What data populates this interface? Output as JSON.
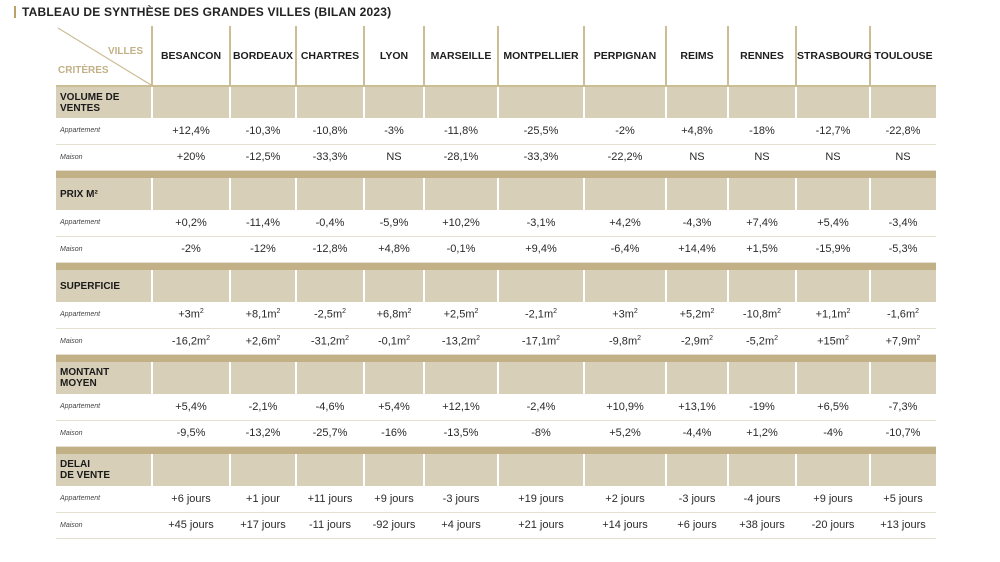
{
  "title": "TABLEAU DE SYNTHÈSE DES GRANDES VILLES (BILAN 2023)",
  "header": {
    "villes_label": "VILLES",
    "criteres_label": "CRITÈRES"
  },
  "cities": [
    "BESANCON",
    "BORDEAUX",
    "CHARTRES",
    "LYON",
    "MARSEILLE",
    "MONTPELLIER",
    "PERPIGNAN",
    "REIMS",
    "RENNES",
    "STRASBOURG",
    "TOULOUSE"
  ],
  "colors": {
    "accent": "#c2b186",
    "section_bg": "#d7cfb8",
    "grid": "#cbbd94"
  },
  "sections": [
    {
      "label": "VOLUME DE\nVENTES",
      "rows": [
        {
          "label": "Appartement",
          "values": [
            "+12,4%",
            "-10,3%",
            "-10,8%",
            "-3%",
            "-11,8%",
            "-25,5%",
            "-2%",
            "+4,8%",
            "-18%",
            "-12,7%",
            "-22,8%"
          ]
        },
        {
          "label": "Maison",
          "values": [
            "+20%",
            "-12,5%",
            "-33,3%",
            "NS",
            "-28,1%",
            "-33,3%",
            "-22,2%",
            "NS",
            "NS",
            "NS",
            "NS"
          ]
        }
      ]
    },
    {
      "label": "PRIX M²",
      "rows": [
        {
          "label": "Appartement",
          "values": [
            "+0,2%",
            "-11,4%",
            "-0,4%",
            "-5,9%",
            "+10,2%",
            "-3,1%",
            "+4,2%",
            "-4,3%",
            "+7,4%",
            "+5,4%",
            "-3,4%"
          ]
        },
        {
          "label": "Maison",
          "values": [
            "-2%",
            "-12%",
            "-12,8%",
            "+4,8%",
            "-0,1%",
            "+9,4%",
            "-6,4%",
            "+14,4%",
            "+1,5%",
            "-15,9%",
            "-5,3%"
          ]
        }
      ]
    },
    {
      "label": "SUPERFICIE",
      "rows": [
        {
          "label": "Appartement",
          "unit": "m",
          "sup": "2",
          "values": [
            "+3",
            "+8,1",
            "-2,5",
            "+6,8",
            "+2,5",
            "-2,1",
            "+3",
            "+5,2",
            "-10,8",
            "+1,1",
            "-1,6"
          ]
        },
        {
          "label": "Maison",
          "unit": "m",
          "sup": "2",
          "values": [
            "-16,2",
            "+2,6",
            "-31,2",
            "-0,1",
            "-13,2",
            "-17,1",
            "-9,8",
            "-2,9",
            "-5,2",
            "+15",
            "+7,9"
          ]
        }
      ]
    },
    {
      "label": "MONTANT MOYEN",
      "rows": [
        {
          "label": "Appartement",
          "values": [
            "+5,4%",
            "-2,1%",
            "-4,6%",
            "+5,4%",
            "+12,1%",
            "-2,4%",
            "+10,9%",
            "+13,1%",
            "-19%",
            "+6,5%",
            "-7,3%"
          ]
        },
        {
          "label": "Maison",
          "values": [
            "-9,5%",
            "-13,2%",
            "-25,7%",
            "-16%",
            "-13,5%",
            "-8%",
            "+5,2%",
            "-4,4%",
            "+1,2%",
            "-4%",
            "-10,7%"
          ]
        }
      ]
    },
    {
      "label": "DELAI\nDE VENTE",
      "rows": [
        {
          "label": "Appartement",
          "values": [
            "+6 jours",
            "+1 jour",
            "+11 jours",
            "+9 jours",
            "-3 jours",
            "+19 jours",
            "+2 jours",
            "-3 jours",
            "-4 jours",
            "+9 jours",
            "+5 jours"
          ]
        },
        {
          "label": "Maison",
          "values": [
            "+45 jours",
            "+17 jours",
            "-11 jours",
            "-92 jours",
            "+4 jours",
            "+21 jours",
            "+14 jours",
            "+6 jours",
            "+38 jours",
            "-20 jours",
            "+13 jours"
          ]
        }
      ]
    }
  ]
}
